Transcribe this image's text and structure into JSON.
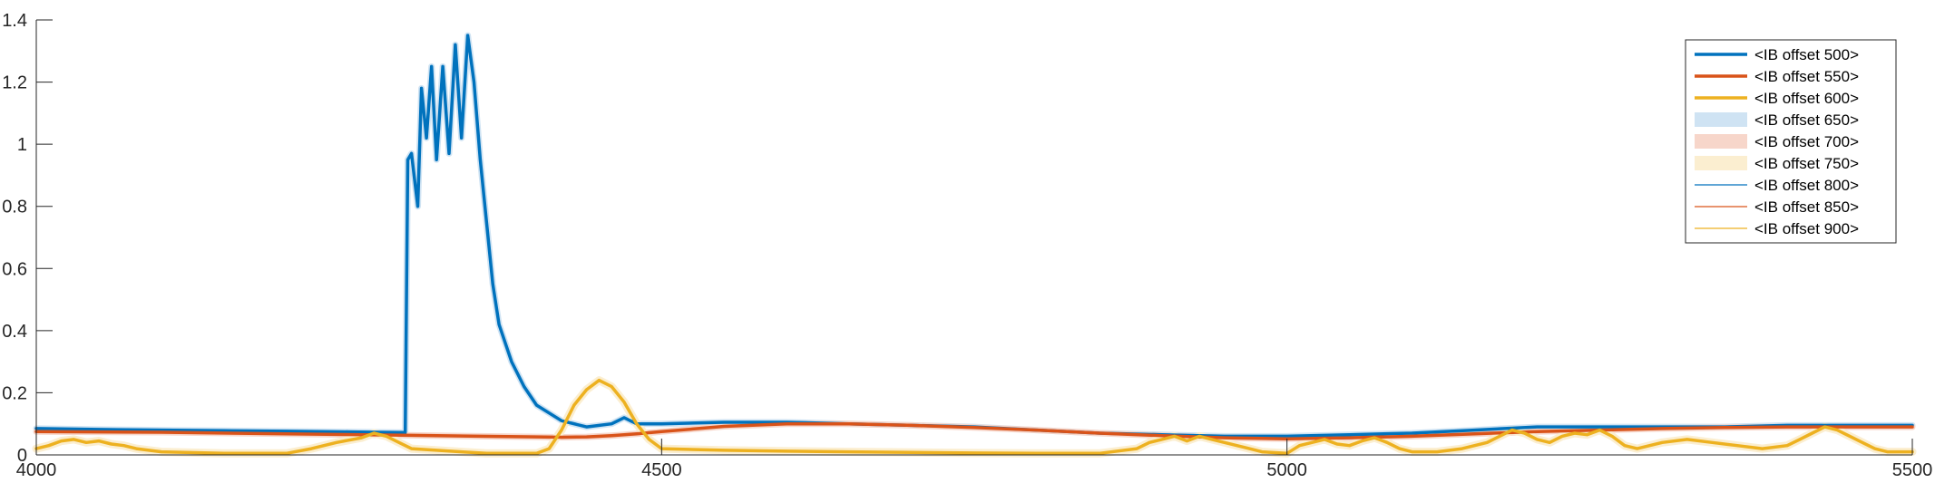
{
  "chart_data": {
    "type": "line",
    "title": "",
    "xlabel": "",
    "ylabel": "",
    "xlim": [
      4000,
      5500
    ],
    "ylim": [
      0,
      1.4
    ],
    "x_ticks": [
      4000,
      4500,
      5000,
      5500
    ],
    "x_tick_labels": [
      "4000",
      "4500",
      "5000",
      "5500"
    ],
    "y_ticks": [
      0,
      0.2,
      0.4,
      0.6,
      0.8,
      1,
      1.2,
      1.4
    ],
    "y_tick_labels": [
      "0",
      "0.2",
      "0.4",
      "0.6",
      "0.8",
      "1",
      "1.2",
      "1.4"
    ],
    "grid": false,
    "legend_position": "top-right",
    "series": [
      {
        "name": "<IB offset 500>",
        "style": "thick-line",
        "color": "#0072BD",
        "x": [
          4000,
          4050,
          4100,
          4150,
          4200,
          4250,
          4290,
          4295,
          4297,
          4300,
          4305,
          4308,
          4312,
          4316,
          4320,
          4325,
          4330,
          4335,
          4340,
          4345,
          4350,
          4355,
          4360,
          4365,
          4370,
          4380,
          4390,
          4400,
          4420,
          4440,
          4460,
          4470,
          4480,
          4500,
          4550,
          4600,
          4650,
          4700,
          4750,
          4800,
          4850,
          4900,
          4950,
          5000,
          5050,
          5100,
          5150,
          5200,
          5250,
          5300,
          5350,
          5400,
          5450,
          5500
        ],
        "y": [
          0.085,
          0.082,
          0.08,
          0.078,
          0.076,
          0.074,
          0.072,
          0.072,
          0.95,
          0.97,
          0.8,
          1.18,
          1.02,
          1.25,
          0.95,
          1.25,
          0.97,
          1.32,
          1.02,
          1.35,
          1.2,
          0.95,
          0.75,
          0.55,
          0.42,
          0.3,
          0.22,
          0.16,
          0.11,
          0.09,
          0.1,
          0.12,
          0.1,
          0.1,
          0.105,
          0.105,
          0.1,
          0.095,
          0.09,
          0.08,
          0.07,
          0.065,
          0.06,
          0.06,
          0.065,
          0.07,
          0.08,
          0.09,
          0.09,
          0.09,
          0.09,
          0.095,
          0.095,
          0.095
        ]
      },
      {
        "name": "<IB offset 550>",
        "style": "thick-line",
        "color": "#D95319",
        "x": [
          4000,
          4100,
          4200,
          4300,
          4400,
          4420,
          4440,
          4460,
          4480,
          4500,
          4550,
          4600,
          4650,
          4700,
          4750,
          4800,
          4850,
          4900,
          4950,
          5000,
          5050,
          5100,
          5150,
          5200,
          5250,
          5300,
          5350,
          5400,
          5450,
          5500
        ],
        "y": [
          0.075,
          0.073,
          0.068,
          0.063,
          0.058,
          0.057,
          0.058,
          0.062,
          0.068,
          0.075,
          0.092,
          0.1,
          0.1,
          0.095,
          0.088,
          0.08,
          0.07,
          0.062,
          0.055,
          0.052,
          0.055,
          0.06,
          0.068,
          0.075,
          0.08,
          0.085,
          0.088,
          0.09,
          0.09,
          0.09
        ]
      },
      {
        "name": "<IB offset 600>",
        "style": "thick-line",
        "color": "#EDB120",
        "x": [
          4000,
          4010,
          4020,
          4030,
          4040,
          4050,
          4060,
          4070,
          4080,
          4100,
          4150,
          4200,
          4220,
          4240,
          4260,
          4270,
          4280,
          4290,
          4300,
          4320,
          4340,
          4360,
          4380,
          4400,
          4410,
          4420,
          4430,
          4440,
          4450,
          4460,
          4470,
          4480,
          4490,
          4500,
          4550,
          4600,
          4650,
          4700,
          4750,
          4800,
          4850,
          4880,
          4890,
          4900,
          4910,
          4920,
          4930,
          4940,
          4950,
          4960,
          4970,
          4980,
          5000,
          5010,
          5020,
          5030,
          5040,
          5050,
          5060,
          5070,
          5080,
          5090,
          5100,
          5110,
          5120,
          5140,
          5160,
          5170,
          5180,
          5190,
          5200,
          5210,
          5220,
          5230,
          5240,
          5250,
          5260,
          5270,
          5280,
          5300,
          5320,
          5340,
          5360,
          5380,
          5400,
          5410,
          5420,
          5430,
          5440,
          5450,
          5460,
          5470,
          5480,
          5500
        ],
        "y": [
          0.02,
          0.03,
          0.045,
          0.05,
          0.04,
          0.045,
          0.035,
          0.03,
          0.02,
          0.01,
          0.005,
          0.005,
          0.02,
          0.04,
          0.055,
          0.07,
          0.06,
          0.04,
          0.02,
          0.015,
          0.01,
          0.005,
          0.005,
          0.005,
          0.02,
          0.08,
          0.16,
          0.21,
          0.24,
          0.22,
          0.17,
          0.1,
          0.05,
          0.02,
          0.015,
          0.012,
          0.01,
          0.008,
          0.006,
          0.005,
          0.005,
          0.02,
          0.04,
          0.05,
          0.06,
          0.045,
          0.06,
          0.05,
          0.04,
          0.03,
          0.02,
          0.01,
          0.005,
          0.03,
          0.04,
          0.05,
          0.035,
          0.03,
          0.045,
          0.055,
          0.04,
          0.02,
          0.01,
          0.01,
          0.01,
          0.02,
          0.04,
          0.06,
          0.08,
          0.07,
          0.05,
          0.04,
          0.06,
          0.07,
          0.065,
          0.08,
          0.06,
          0.03,
          0.02,
          0.04,
          0.05,
          0.04,
          0.03,
          0.02,
          0.03,
          0.05,
          0.07,
          0.09,
          0.08,
          0.06,
          0.04,
          0.02,
          0.01,
          0.01
        ]
      },
      {
        "name": "<IB offset 650>",
        "style": "patch",
        "color": "#CFE3F3"
      },
      {
        "name": "<IB offset 700>",
        "style": "patch",
        "color": "#F7D6CA"
      },
      {
        "name": "<IB offset 750>",
        "style": "patch",
        "color": "#FBEED0"
      },
      {
        "name": "<IB offset 800>",
        "style": "thin-line",
        "color": "#0072BD"
      },
      {
        "name": "<IB offset 850>",
        "style": "thin-line",
        "color": "#D95319"
      },
      {
        "name": "<IB offset 900>",
        "style": "thin-line",
        "color": "#EDB120"
      }
    ]
  }
}
